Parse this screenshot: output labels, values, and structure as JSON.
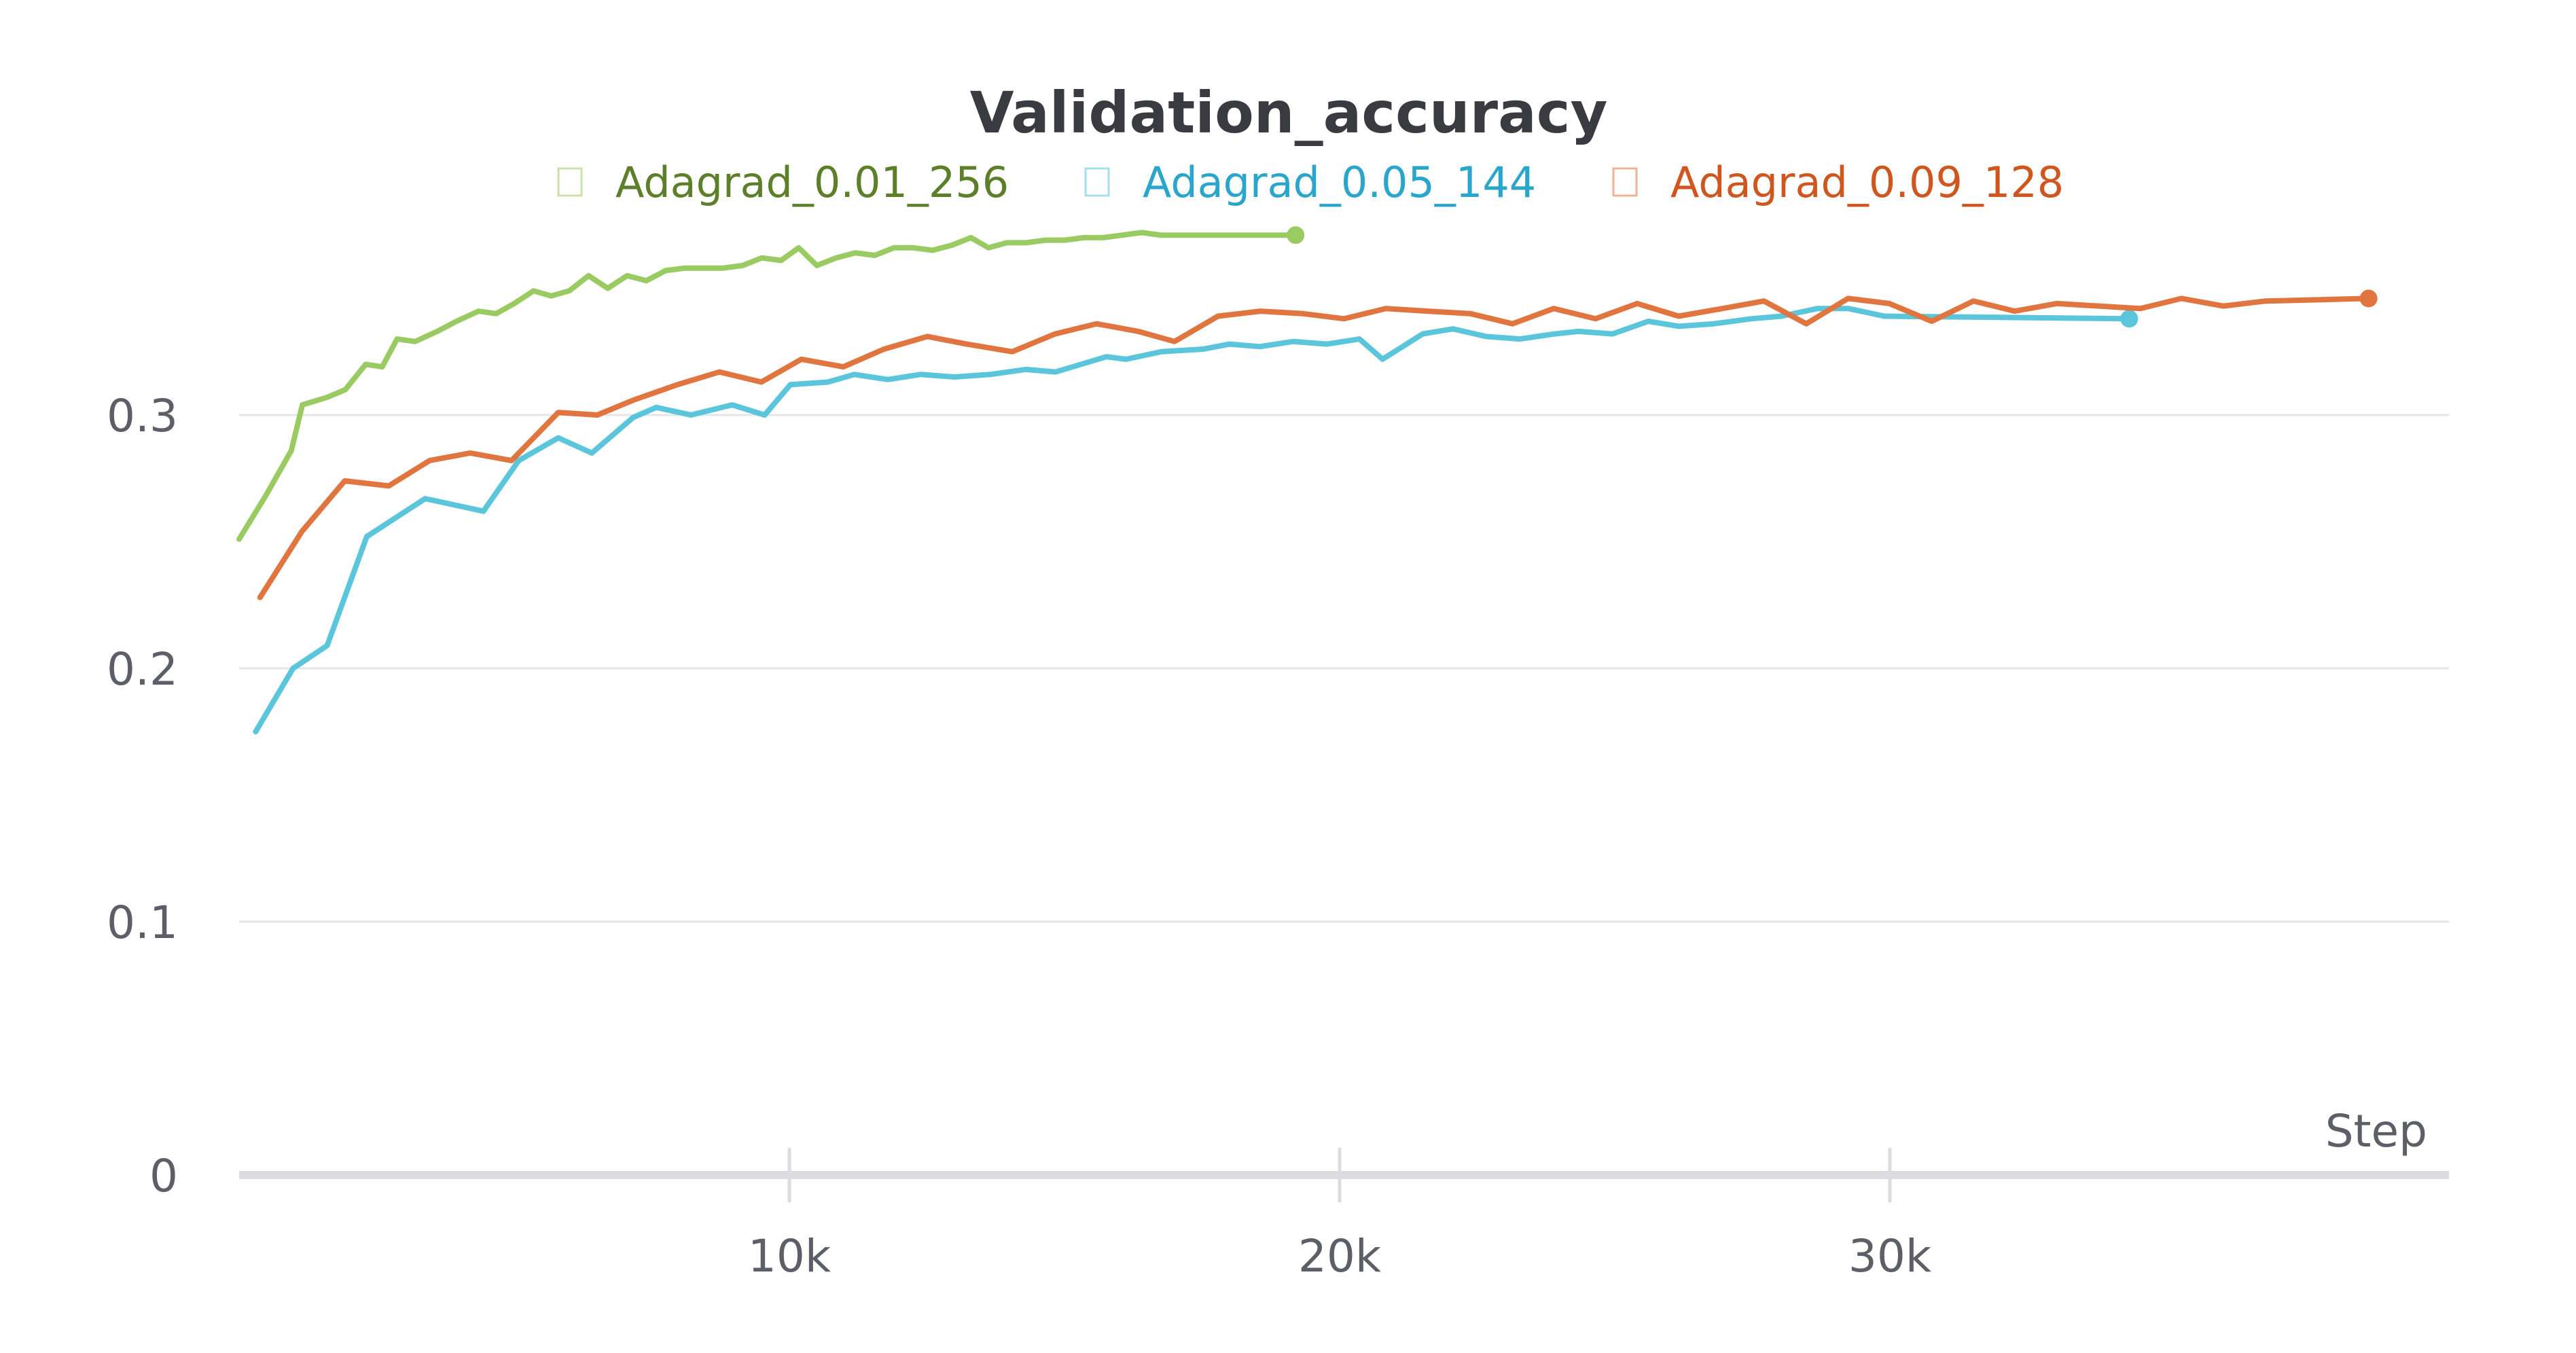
{
  "chart_data": {
    "type": "line",
    "title": "Validation_accuracy",
    "xlabel": "Step",
    "ylabel": "",
    "xlim": [
      0,
      38700
    ],
    "ylim": [
      0,
      0.37
    ],
    "x_ticks": [
      {
        "value": 10000,
        "label": "10k"
      },
      {
        "value": 20000,
        "label": "20k"
      },
      {
        "value": 30000,
        "label": "30k"
      }
    ],
    "y_ticks": [
      {
        "value": 0,
        "label": "0"
      },
      {
        "value": 0.1,
        "label": "0.1"
      },
      {
        "value": 0.2,
        "label": "0.2"
      },
      {
        "value": 0.3,
        "label": "0.3"
      }
    ],
    "grid": true,
    "legend_position": "top",
    "series": [
      {
        "name": "Adagrad_0.01_256",
        "color": "#9acb63",
        "text_color": "#5d7f2a",
        "points": [
          [
            0,
            0.251
          ],
          [
            480,
            0.268
          ],
          [
            950,
            0.286
          ],
          [
            1150,
            0.304
          ],
          [
            1600,
            0.307
          ],
          [
            1930,
            0.31
          ],
          [
            2300,
            0.32
          ],
          [
            2600,
            0.319
          ],
          [
            2870,
            0.33
          ],
          [
            3200,
            0.329
          ],
          [
            3600,
            0.333
          ],
          [
            3950,
            0.337
          ],
          [
            4350,
            0.341
          ],
          [
            4670,
            0.34
          ],
          [
            5000,
            0.344
          ],
          [
            5350,
            0.349
          ],
          [
            5670,
            0.347
          ],
          [
            6000,
            0.349
          ],
          [
            6350,
            0.355
          ],
          [
            6700,
            0.35
          ],
          [
            7050,
            0.355
          ],
          [
            7400,
            0.353
          ],
          [
            7750,
            0.357
          ],
          [
            8100,
            0.358
          ],
          [
            8450,
            0.358
          ],
          [
            8800,
            0.358
          ],
          [
            9150,
            0.359
          ],
          [
            9500,
            0.362
          ],
          [
            9850,
            0.361
          ],
          [
            10170,
            0.366
          ],
          [
            10500,
            0.359
          ],
          [
            10850,
            0.362
          ],
          [
            11200,
            0.364
          ],
          [
            11550,
            0.363
          ],
          [
            11900,
            0.366
          ],
          [
            12250,
            0.366
          ],
          [
            12600,
            0.365
          ],
          [
            12950,
            0.367
          ],
          [
            13300,
            0.37
          ],
          [
            13620,
            0.366
          ],
          [
            13950,
            0.368
          ],
          [
            14300,
            0.368
          ],
          [
            14650,
            0.369
          ],
          [
            15000,
            0.369
          ],
          [
            15350,
            0.37
          ],
          [
            15700,
            0.37
          ],
          [
            16050,
            0.371
          ],
          [
            16400,
            0.372
          ],
          [
            16750,
            0.371
          ],
          [
            19200,
            0.371
          ]
        ]
      },
      {
        "name": "Adagrad_0.05_144",
        "color": "#5bc5db",
        "text_color": "#2aa6cc",
        "points": [
          [
            300,
            0.175
          ],
          [
            980,
            0.2
          ],
          [
            1600,
            0.209
          ],
          [
            2320,
            0.252
          ],
          [
            3380,
            0.267
          ],
          [
            4440,
            0.262
          ],
          [
            5080,
            0.282
          ],
          [
            5800,
            0.291
          ],
          [
            6410,
            0.285
          ],
          [
            7160,
            0.299
          ],
          [
            7580,
            0.303
          ],
          [
            8210,
            0.3
          ],
          [
            8960,
            0.304
          ],
          [
            9550,
            0.3
          ],
          [
            10020,
            0.312
          ],
          [
            10700,
            0.313
          ],
          [
            11180,
            0.316
          ],
          [
            11790,
            0.314
          ],
          [
            12380,
            0.316
          ],
          [
            13000,
            0.315
          ],
          [
            13650,
            0.316
          ],
          [
            14290,
            0.318
          ],
          [
            14840,
            0.317
          ],
          [
            15760,
            0.323
          ],
          [
            16120,
            0.322
          ],
          [
            16760,
            0.325
          ],
          [
            17520,
            0.326
          ],
          [
            18000,
            0.328
          ],
          [
            18550,
            0.327
          ],
          [
            19150,
            0.329
          ],
          [
            19770,
            0.328
          ],
          [
            20360,
            0.33
          ],
          [
            20780,
            0.322
          ],
          [
            21510,
            0.332
          ],
          [
            22060,
            0.334
          ],
          [
            22660,
            0.331
          ],
          [
            23280,
            0.33
          ],
          [
            23910,
            0.332
          ],
          [
            24340,
            0.333
          ],
          [
            24960,
            0.332
          ],
          [
            25610,
            0.337
          ],
          [
            26170,
            0.335
          ],
          [
            26800,
            0.336
          ],
          [
            27480,
            0.338
          ],
          [
            28030,
            0.339
          ],
          [
            28680,
            0.342
          ],
          [
            29250,
            0.342
          ],
          [
            29900,
            0.339
          ],
          [
            34350,
            0.338
          ]
        ]
      },
      {
        "name": "Adagrad_0.09_128",
        "color": "#e07540",
        "text_color": "#d0561f",
        "points": [
          [
            380,
            0.228
          ],
          [
            1140,
            0.254
          ],
          [
            1920,
            0.274
          ],
          [
            2720,
            0.272
          ],
          [
            3460,
            0.282
          ],
          [
            4200,
            0.285
          ],
          [
            4950,
            0.282
          ],
          [
            5800,
            0.301
          ],
          [
            6510,
            0.3
          ],
          [
            7180,
            0.306
          ],
          [
            7970,
            0.312
          ],
          [
            8730,
            0.317
          ],
          [
            9490,
            0.313
          ],
          [
            10220,
            0.322
          ],
          [
            10980,
            0.319
          ],
          [
            11720,
            0.326
          ],
          [
            12510,
            0.331
          ],
          [
            13220,
            0.328
          ],
          [
            14050,
            0.325
          ],
          [
            14830,
            0.332
          ],
          [
            15580,
            0.336
          ],
          [
            16340,
            0.333
          ],
          [
            17000,
            0.329
          ],
          [
            17790,
            0.339
          ],
          [
            18560,
            0.341
          ],
          [
            19340,
            0.34
          ],
          [
            20080,
            0.338
          ],
          [
            20840,
            0.342
          ],
          [
            21600,
            0.341
          ],
          [
            22380,
            0.34
          ],
          [
            23140,
            0.336
          ],
          [
            23890,
            0.342
          ],
          [
            24650,
            0.338
          ],
          [
            25410,
            0.344
          ],
          [
            26160,
            0.339
          ],
          [
            26950,
            0.342
          ],
          [
            27710,
            0.345
          ],
          [
            28480,
            0.336
          ],
          [
            29240,
            0.346
          ],
          [
            29990,
            0.344
          ],
          [
            30760,
            0.337
          ],
          [
            31520,
            0.345
          ],
          [
            32270,
            0.341
          ],
          [
            33030,
            0.344
          ],
          [
            33800,
            0.343
          ],
          [
            34550,
            0.342
          ],
          [
            35300,
            0.346
          ],
          [
            36060,
            0.343
          ],
          [
            36830,
            0.345
          ],
          [
            38700,
            0.346
          ]
        ]
      }
    ]
  }
}
